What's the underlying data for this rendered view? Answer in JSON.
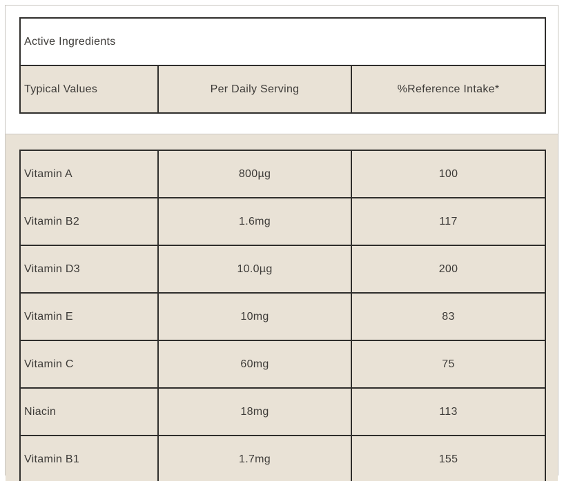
{
  "chart_data": {
    "type": "table",
    "title": "Active Ingredients",
    "columns": [
      "Typical Values",
      "Per Daily Serving",
      "%Reference Intake*"
    ],
    "rows": [
      [
        "Vitamin A",
        "800µg",
        "100"
      ],
      [
        "Vitamin B2",
        "1.6mg",
        "117"
      ],
      [
        "Vitamin D3",
        "10.0µg",
        "200"
      ],
      [
        "Vitamin E",
        "10mg",
        "83"
      ],
      [
        "Vitamin C",
        "60mg",
        "75"
      ],
      [
        "Niacin",
        "18mg",
        "113"
      ],
      [
        "Vitamin B1",
        "1.7mg",
        "155"
      ]
    ]
  },
  "colors": {
    "panel_beige": "#e9e2d6",
    "table_border_dark": "#2f2e2c",
    "outer_border_light": "#c9c6c0",
    "text": "#3d3b38",
    "white": "#ffffff"
  }
}
